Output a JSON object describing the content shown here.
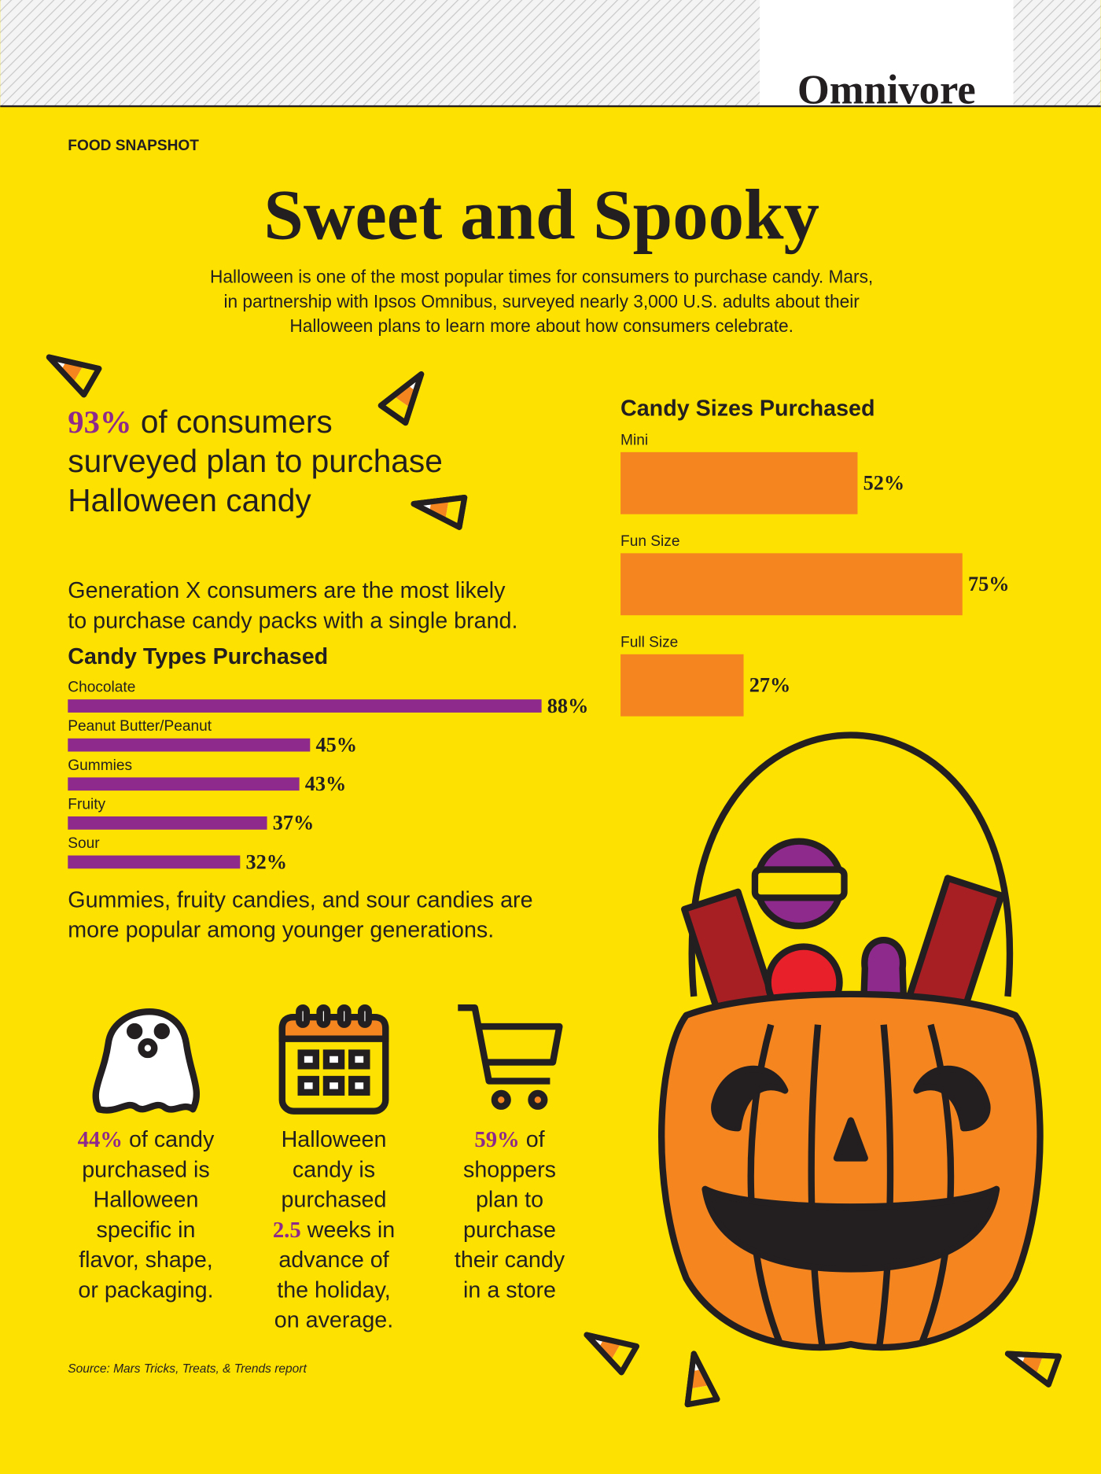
{
  "header": {
    "brand": "Omnivore",
    "section": "FOOD SNAPSHOT",
    "title": "Sweet and Spooky"
  },
  "intro": [
    "Halloween is one of the most popular times for consumers to purchase candy. Mars,",
    "in partnership with Ipsos Omnibus, surveyed nearly 3,000 U.S. adults about their",
    "Halloween plans to learn more about how consumers celebrate."
  ],
  "headline_stat": {
    "lines": [
      {
        "highlight": "93%",
        "text": " of consumers"
      },
      "surveyed plan to purchase",
      "Halloween candy"
    ]
  },
  "genx_note": [
    "Generation X consumers are the most likely",
    "to purchase candy packs with a single brand."
  ],
  "young_note": [
    "Gummies, fruity candies, and sour candies are",
    "more popular among younger generations."
  ],
  "stats": [
    {
      "lines": [
        {
          "highlight": "44%",
          "text": " of candy"
        },
        "purchased is",
        "Halloween",
        "specific in",
        "flavor, shape,",
        "or packaging."
      ]
    },
    {
      "lines": [
        "Halloween",
        "candy is",
        "purchased",
        {
          "highlight": "2.5",
          "text": " weeks in"
        },
        "advance of",
        "the holiday,",
        "on average."
      ]
    },
    {
      "lines": [
        {
          "highlight": "59%",
          "text": " of"
        },
        "shoppers",
        "plan to",
        "purchase",
        "their candy",
        "in a store"
      ]
    }
  ],
  "source": "Source: Mars Tricks, Treats, & Trends report",
  "chart_data": [
    {
      "type": "bar",
      "orientation": "horizontal",
      "title": "Candy Types Purchased",
      "categories": [
        "Chocolate",
        "Peanut Butter/Peanut",
        "Gummies",
        "Fruity",
        "Sour"
      ],
      "values": [
        88,
        45,
        43,
        37,
        32
      ],
      "value_labels": [
        "88%",
        "45%",
        "43%",
        "37%",
        "32%"
      ],
      "color": "#8d2a8c"
    },
    {
      "type": "bar",
      "orientation": "horizontal",
      "title": "Candy Sizes Purchased",
      "categories": [
        "Mini",
        "Fun Size",
        "Full Size"
      ],
      "values": [
        52,
        75,
        27
      ],
      "value_labels": [
        "52%",
        "75%",
        "27%"
      ],
      "color": "#f5861f"
    }
  ]
}
